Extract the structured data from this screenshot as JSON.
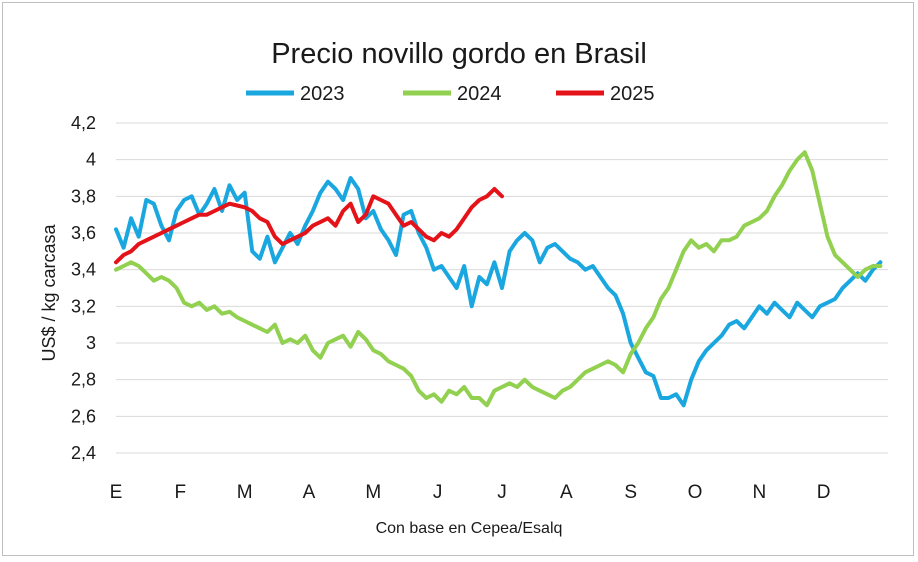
{
  "chart_data": {
    "type": "line",
    "title": "Precio novillo gordo en Brasil",
    "ylabel": "US$ / kg carcasa",
    "xlabel": "Con base en Cepea/Esalq",
    "ylim": [
      2.4,
      4.2
    ],
    "yticks": [
      "2,4",
      "2,6",
      "2,8",
      "3",
      "3,2",
      "3,4",
      "3,6",
      "3,8",
      "4",
      "4,2"
    ],
    "ytick_values": [
      2.4,
      2.6,
      2.8,
      3.0,
      3.2,
      3.4,
      3.6,
      3.8,
      4.0,
      4.2
    ],
    "months": [
      "E",
      "F",
      "M",
      "A",
      "M",
      "J",
      "J",
      "A",
      "S",
      "O",
      "N",
      "D"
    ],
    "x_unit": "week",
    "xlim": [
      1,
      52
    ],
    "grid": true,
    "legend_position": "top",
    "series": [
      {
        "name": "2023",
        "color": "#1aa7e0",
        "x": [
          1,
          1.5,
          2,
          2.5,
          3,
          3.5,
          4,
          4.5,
          5,
          5.5,
          6,
          6.5,
          7,
          7.5,
          8,
          8.5,
          9,
          9.5,
          10,
          10.5,
          11,
          11.5,
          12,
          12.5,
          13,
          13.5,
          14,
          14.5,
          15,
          15.5,
          16,
          16.5,
          17,
          17.5,
          18,
          18.5,
          19,
          19.5,
          20,
          20.5,
          21,
          21.5,
          22,
          22.5,
          23,
          23.5,
          24,
          24.5,
          25,
          25.5,
          26,
          26.5,
          27,
          27.5,
          28,
          28.5,
          29,
          29.5,
          30,
          30.5,
          31,
          31.5,
          32,
          32.5,
          33,
          33.5,
          34,
          34.5,
          35,
          35.5,
          36,
          36.5,
          37,
          37.5,
          38,
          38.5,
          39,
          39.5,
          40,
          40.5,
          41,
          41.5,
          42,
          42.5,
          43,
          43.5,
          44,
          44.5,
          45,
          45.5,
          46,
          46.5,
          47,
          47.5,
          48,
          48.5,
          49,
          49.5,
          50,
          50.5,
          51,
          51.5
        ],
        "values": [
          3.62,
          3.52,
          3.68,
          3.58,
          3.78,
          3.76,
          3.64,
          3.56,
          3.72,
          3.78,
          3.8,
          3.7,
          3.76,
          3.84,
          3.72,
          3.86,
          3.78,
          3.82,
          3.5,
          3.46,
          3.58,
          3.44,
          3.52,
          3.6,
          3.54,
          3.64,
          3.72,
          3.82,
          3.88,
          3.84,
          3.78,
          3.9,
          3.84,
          3.68,
          3.72,
          3.62,
          3.56,
          3.48,
          3.7,
          3.72,
          3.6,
          3.52,
          3.4,
          3.42,
          3.36,
          3.3,
          3.42,
          3.2,
          3.36,
          3.32,
          3.44,
          3.3,
          3.5,
          3.56,
          3.6,
          3.56,
          3.44,
          3.52,
          3.54,
          3.5,
          3.46,
          3.44,
          3.4,
          3.42,
          3.36,
          3.3,
          3.26,
          3.16,
          3.0,
          2.92,
          2.84,
          2.82,
          2.7,
          2.7,
          2.72,
          2.66,
          2.8,
          2.9,
          2.96,
          3.0,
          3.04,
          3.1,
          3.12,
          3.08,
          3.14,
          3.2,
          3.16,
          3.22,
          3.18,
          3.14,
          3.22,
          3.18,
          3.14,
          3.2,
          3.22,
          3.24,
          3.3,
          3.34,
          3.38,
          3.34,
          3.4,
          3.44
        ]
      },
      {
        "name": "2024",
        "color": "#92d050",
        "x": [
          1,
          1.5,
          2,
          2.5,
          3,
          3.5,
          4,
          4.5,
          5,
          5.5,
          6,
          6.5,
          7,
          7.5,
          8,
          8.5,
          9,
          9.5,
          10,
          10.5,
          11,
          11.5,
          12,
          12.5,
          13,
          13.5,
          14,
          14.5,
          15,
          15.5,
          16,
          16.5,
          17,
          17.5,
          18,
          18.5,
          19,
          19.5,
          20,
          20.5,
          21,
          21.5,
          22,
          22.5,
          23,
          23.5,
          24,
          24.5,
          25,
          25.5,
          26,
          26.5,
          27,
          27.5,
          28,
          28.5,
          29,
          29.5,
          30,
          30.5,
          31,
          31.5,
          32,
          32.5,
          33,
          33.5,
          34,
          34.5,
          35,
          35.5,
          36,
          36.5,
          37,
          37.5,
          38,
          38.5,
          39,
          39.5,
          40,
          40.5,
          41,
          41.5,
          42,
          42.5,
          43,
          43.5,
          44,
          44.5,
          45,
          45.5,
          46,
          46.5,
          47,
          47.5,
          48,
          48.5,
          49,
          49.5,
          50,
          50.5,
          51,
          51.5
        ],
        "values": [
          3.4,
          3.42,
          3.44,
          3.42,
          3.38,
          3.34,
          3.36,
          3.34,
          3.3,
          3.22,
          3.2,
          3.22,
          3.18,
          3.2,
          3.16,
          3.17,
          3.14,
          3.12,
          3.1,
          3.08,
          3.06,
          3.1,
          3.0,
          3.02,
          3.0,
          3.04,
          2.96,
          2.92,
          3.0,
          3.02,
          3.04,
          2.98,
          3.06,
          3.02,
          2.96,
          2.94,
          2.9,
          2.88,
          2.86,
          2.82,
          2.74,
          2.7,
          2.72,
          2.68,
          2.74,
          2.72,
          2.76,
          2.7,
          2.7,
          2.66,
          2.74,
          2.76,
          2.78,
          2.76,
          2.8,
          2.76,
          2.74,
          2.72,
          2.7,
          2.74,
          2.76,
          2.8,
          2.84,
          2.86,
          2.88,
          2.9,
          2.88,
          2.84,
          2.94,
          3.0,
          3.08,
          3.14,
          3.24,
          3.3,
          3.4,
          3.5,
          3.56,
          3.52,
          3.54,
          3.5,
          3.56,
          3.56,
          3.58,
          3.64,
          3.66,
          3.68,
          3.72,
          3.8,
          3.86,
          3.94,
          4.0,
          4.04,
          3.94,
          3.76,
          3.58,
          3.48,
          3.44,
          3.4,
          3.36,
          3.4,
          3.42,
          3.42
        ]
      },
      {
        "name": "2025",
        "color": "#e4131a",
        "x": [
          1,
          1.5,
          2,
          2.5,
          3,
          3.5,
          4,
          4.5,
          5,
          5.5,
          6,
          6.5,
          7,
          7.5,
          8,
          8.5,
          9,
          9.5,
          10,
          10.5,
          11,
          11.5,
          12,
          12.5,
          13,
          13.5,
          14,
          14.5,
          15,
          15.5,
          16,
          16.5,
          17,
          17.5,
          18,
          18.5,
          19,
          19.5,
          20,
          20.5,
          21,
          21.5,
          22,
          22.5,
          23,
          23.5,
          24,
          24.5,
          25,
          25.5,
          26,
          26.5
        ],
        "values": [
          3.44,
          3.48,
          3.5,
          3.54,
          3.56,
          3.58,
          3.6,
          3.62,
          3.64,
          3.66,
          3.68,
          3.7,
          3.7,
          3.72,
          3.74,
          3.76,
          3.75,
          3.74,
          3.72,
          3.68,
          3.66,
          3.58,
          3.54,
          3.56,
          3.58,
          3.6,
          3.64,
          3.66,
          3.68,
          3.64,
          3.72,
          3.76,
          3.66,
          3.7,
          3.8,
          3.78,
          3.76,
          3.7,
          3.64,
          3.66,
          3.62,
          3.58,
          3.56,
          3.6,
          3.58,
          3.62,
          3.68,
          3.74,
          3.78,
          3.8,
          3.84,
          3.8
        ]
      }
    ]
  }
}
